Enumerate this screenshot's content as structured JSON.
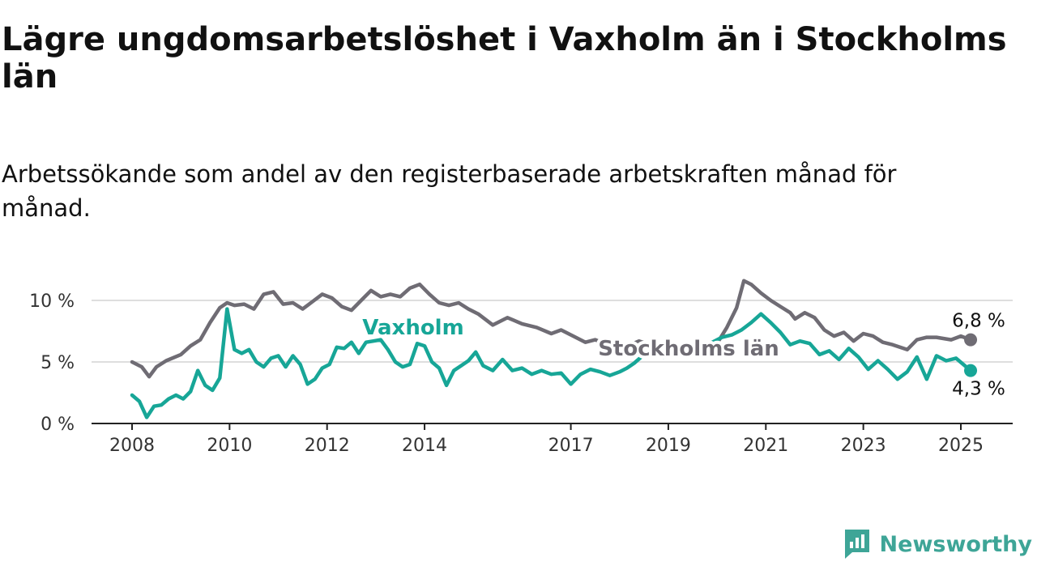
{
  "title": "Lägre ungdomsarbetslöshet i Vaxholm än i Stockholms län",
  "subtitle": "Arbetssökande som andel av den registerbaserade arbetskraften månad för månad.",
  "brand": {
    "name": "Newsworthy",
    "icon": "newsworthy-logo-icon",
    "color": "#3ea597"
  },
  "chart_data": {
    "type": "line",
    "x_unit": "year",
    "xlim": [
      2008,
      2025.5
    ],
    "ylim": [
      0,
      10.5
    ],
    "y_ticks": [
      {
        "value": 0,
        "label": "0 %"
      },
      {
        "value": 5,
        "label": "5 %"
      },
      {
        "value": 10,
        "label": "10 %"
      }
    ],
    "x_ticks": [
      2008,
      2010,
      2012,
      2014,
      2017,
      2019,
      2021,
      2023,
      2025
    ],
    "grid": "horizontal",
    "series": [
      {
        "name": "Stockholms län",
        "color": "#6f6c74",
        "end_label": "6,8 %",
        "points": [
          [
            2008,
            5.0
          ],
          [
            2008.2,
            4.6
          ],
          [
            2008.35,
            3.8
          ],
          [
            2008.5,
            4.6
          ],
          [
            2008.7,
            5.1
          ],
          [
            2009,
            5.6
          ],
          [
            2009.2,
            6.3
          ],
          [
            2009.4,
            6.8
          ],
          [
            2009.6,
            8.2
          ],
          [
            2009.8,
            9.4
          ],
          [
            2009.95,
            9.8
          ],
          [
            2010.1,
            9.6
          ],
          [
            2010.3,
            9.7
          ],
          [
            2010.5,
            9.3
          ],
          [
            2010.7,
            10.5
          ],
          [
            2010.9,
            10.7
          ],
          [
            2011.1,
            9.7
          ],
          [
            2011.3,
            9.8
          ],
          [
            2011.5,
            9.3
          ],
          [
            2011.7,
            9.9
          ],
          [
            2011.9,
            10.5
          ],
          [
            2012.1,
            10.2
          ],
          [
            2012.3,
            9.5
          ],
          [
            2012.5,
            9.2
          ],
          [
            2012.7,
            10.0
          ],
          [
            2012.9,
            10.8
          ],
          [
            2013.1,
            10.3
          ],
          [
            2013.3,
            10.5
          ],
          [
            2013.5,
            10.3
          ],
          [
            2013.7,
            11.0
          ],
          [
            2013.9,
            11.3
          ],
          [
            2014.1,
            10.5
          ],
          [
            2014.3,
            9.8
          ],
          [
            2014.5,
            9.6
          ],
          [
            2014.7,
            9.8
          ],
          [
            2014.9,
            9.3
          ],
          [
            2015.1,
            8.9
          ],
          [
            2015.4,
            8.0
          ],
          [
            2015.7,
            8.6
          ],
          [
            2016.0,
            8.1
          ],
          [
            2016.3,
            7.8
          ],
          [
            2016.6,
            7.3
          ],
          [
            2016.8,
            7.6
          ],
          [
            2017.1,
            7.0
          ],
          [
            2017.3,
            6.6
          ],
          [
            2017.5,
            6.8
          ],
          [
            2017.8,
            6.3
          ],
          [
            2018.1,
            6.2
          ],
          [
            2018.4,
            6.7
          ],
          [
            2018.7,
            6.3
          ],
          [
            2019.0,
            6.0
          ],
          [
            2019.3,
            5.8
          ],
          [
            2019.6,
            5.9
          ],
          [
            2019.8,
            6.2
          ],
          [
            2020.0,
            6.5
          ],
          [
            2020.2,
            7.8
          ],
          [
            2020.4,
            9.4
          ],
          [
            2020.55,
            11.6
          ],
          [
            2020.7,
            11.3
          ],
          [
            2020.9,
            10.6
          ],
          [
            2021.1,
            10.0
          ],
          [
            2021.3,
            9.5
          ],
          [
            2021.5,
            9.0
          ],
          [
            2021.6,
            8.5
          ],
          [
            2021.8,
            9.0
          ],
          [
            2022.0,
            8.6
          ],
          [
            2022.2,
            7.6
          ],
          [
            2022.4,
            7.1
          ],
          [
            2022.6,
            7.4
          ],
          [
            2022.8,
            6.7
          ],
          [
            2023.0,
            7.3
          ],
          [
            2023.2,
            7.1
          ],
          [
            2023.4,
            6.6
          ],
          [
            2023.6,
            6.4
          ],
          [
            2023.9,
            6.0
          ],
          [
            2024.1,
            6.8
          ],
          [
            2024.3,
            7.0
          ],
          [
            2024.5,
            7.0
          ],
          [
            2024.8,
            6.8
          ],
          [
            2025.0,
            7.1
          ],
          [
            2025.2,
            6.8
          ]
        ]
      },
      {
        "name": "Vaxholm",
        "color": "#17a697",
        "end_label": "4,3 %",
        "points": [
          [
            2008,
            2.3
          ],
          [
            2008.15,
            1.8
          ],
          [
            2008.3,
            0.5
          ],
          [
            2008.45,
            1.4
          ],
          [
            2008.6,
            1.5
          ],
          [
            2008.75,
            2.0
          ],
          [
            2008.9,
            2.3
          ],
          [
            2009.05,
            2.0
          ],
          [
            2009.2,
            2.6
          ],
          [
            2009.35,
            4.3
          ],
          [
            2009.5,
            3.1
          ],
          [
            2009.65,
            2.7
          ],
          [
            2009.8,
            3.7
          ],
          [
            2009.95,
            9.3
          ],
          [
            2010.1,
            6.0
          ],
          [
            2010.25,
            5.7
          ],
          [
            2010.4,
            6.0
          ],
          [
            2010.55,
            5.0
          ],
          [
            2010.7,
            4.6
          ],
          [
            2010.85,
            5.3
          ],
          [
            2011.0,
            5.5
          ],
          [
            2011.15,
            4.6
          ],
          [
            2011.3,
            5.5
          ],
          [
            2011.45,
            4.8
          ],
          [
            2011.6,
            3.2
          ],
          [
            2011.75,
            3.6
          ],
          [
            2011.9,
            4.5
          ],
          [
            2012.05,
            4.8
          ],
          [
            2012.2,
            6.2
          ],
          [
            2012.35,
            6.1
          ],
          [
            2012.5,
            6.6
          ],
          [
            2012.65,
            5.7
          ],
          [
            2012.8,
            6.6
          ],
          [
            2012.95,
            6.7
          ],
          [
            2013.1,
            6.8
          ],
          [
            2013.25,
            6.0
          ],
          [
            2013.4,
            5.0
          ],
          [
            2013.55,
            4.6
          ],
          [
            2013.7,
            4.8
          ],
          [
            2013.85,
            6.5
          ],
          [
            2014.0,
            6.3
          ],
          [
            2014.15,
            5.0
          ],
          [
            2014.3,
            4.5
          ],
          [
            2014.45,
            3.1
          ],
          [
            2014.6,
            4.3
          ],
          [
            2014.75,
            4.7
          ],
          [
            2014.9,
            5.1
          ],
          [
            2015.05,
            5.8
          ],
          [
            2015.2,
            4.7
          ],
          [
            2015.4,
            4.3
          ],
          [
            2015.6,
            5.2
          ],
          [
            2015.8,
            4.3
          ],
          [
            2016.0,
            4.5
          ],
          [
            2016.2,
            4.0
          ],
          [
            2016.4,
            4.3
          ],
          [
            2016.6,
            4.0
          ],
          [
            2016.8,
            4.1
          ],
          [
            2017.0,
            3.2
          ],
          [
            2017.2,
            4.0
          ],
          [
            2017.4,
            4.4
          ],
          [
            2017.6,
            4.2
          ],
          [
            2017.8,
            3.9
          ],
          [
            2018.0,
            4.2
          ],
          [
            2018.15,
            4.5
          ],
          [
            2018.3,
            4.9
          ],
          [
            2018.5,
            5.6
          ],
          [
            2018.7,
            5.7
          ],
          [
            2018.9,
            5.4
          ],
          [
            2019.1,
            5.5
          ],
          [
            2019.3,
            5.8
          ],
          [
            2019.5,
            5.9
          ],
          [
            2019.7,
            6.1
          ],
          [
            2019.9,
            6.6
          ],
          [
            2020.1,
            7.0
          ],
          [
            2020.3,
            7.2
          ],
          [
            2020.5,
            7.6
          ],
          [
            2020.7,
            8.2
          ],
          [
            2020.9,
            8.9
          ],
          [
            2021.1,
            8.2
          ],
          [
            2021.3,
            7.4
          ],
          [
            2021.5,
            6.4
          ],
          [
            2021.7,
            6.7
          ],
          [
            2021.9,
            6.5
          ],
          [
            2022.1,
            5.6
          ],
          [
            2022.3,
            5.9
          ],
          [
            2022.5,
            5.2
          ],
          [
            2022.7,
            6.1
          ],
          [
            2022.9,
            5.4
          ],
          [
            2023.1,
            4.4
          ],
          [
            2023.3,
            5.1
          ],
          [
            2023.5,
            4.4
          ],
          [
            2023.7,
            3.6
          ],
          [
            2023.9,
            4.2
          ],
          [
            2024.1,
            5.4
          ],
          [
            2024.3,
            3.6
          ],
          [
            2024.5,
            5.5
          ],
          [
            2024.7,
            5.1
          ],
          [
            2024.9,
            5.3
          ],
          [
            2025.05,
            4.8
          ],
          [
            2025.2,
            4.3
          ]
        ]
      }
    ]
  }
}
